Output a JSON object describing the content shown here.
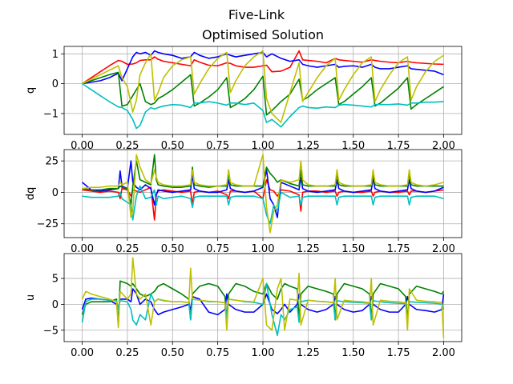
{
  "chart_data": [
    {
      "type": "line",
      "suptitle": "Five-Link",
      "title": "Optimised Solution",
      "ylabel": "q",
      "xlim": [
        -0.1,
        2.1
      ],
      "ylim": [
        -1.7,
        1.25
      ],
      "xticks": [
        "0.00",
        "0.25",
        "0.50",
        "0.75",
        "1.00",
        "1.25",
        "1.50",
        "1.75",
        "2.00"
      ],
      "yticks": [
        1,
        0,
        -1
      ],
      "yticklabels": [
        "1",
        "0",
        "−1"
      ],
      "grid": true,
      "x": [
        0,
        0.05,
        0.1,
        0.15,
        0.2,
        0.22,
        0.25,
        0.28,
        0.3,
        0.32,
        0.35,
        0.38,
        0.4,
        0.42,
        0.45,
        0.5,
        0.55,
        0.6,
        0.62,
        0.65,
        0.7,
        0.75,
        0.8,
        0.82,
        0.85,
        0.9,
        0.95,
        1.0,
        1.02,
        1.05,
        1.1,
        1.15,
        1.2,
        1.22,
        1.25,
        1.3,
        1.35,
        1.4,
        1.42,
        1.45,
        1.5,
        1.55,
        1.6,
        1.62,
        1.65,
        1.7,
        1.75,
        1.8,
        1.82,
        1.85,
        1.9,
        1.95,
        2.0
      ],
      "series": [
        {
          "color": "#ff0000",
          "values": [
            0,
            0.2,
            0.4,
            0.6,
            0.78,
            0.75,
            0.65,
            0.66,
            0.7,
            0.78,
            0.8,
            0.8,
            0.9,
            0.82,
            0.75,
            0.7,
            0.65,
            0.6,
            0.8,
            0.72,
            0.62,
            0.6,
            0.7,
            0.68,
            0.6,
            0.55,
            0.55,
            0.6,
            0.62,
            0.4,
            0.42,
            0.55,
            1.1,
            0.8,
            0.78,
            0.75,
            0.7,
            0.85,
            0.8,
            0.78,
            0.75,
            0.72,
            0.8,
            0.78,
            0.75,
            0.72,
            0.7,
            0.75,
            0.72,
            0.7,
            0.68,
            0.66,
            0.65
          ]
        },
        {
          "color": "#0000ff",
          "values": [
            0,
            0.05,
            0.1,
            0.2,
            0.35,
            0.1,
            0.5,
            0.9,
            1.05,
            1.0,
            1.05,
            0.95,
            1.1,
            1.05,
            1.0,
            0.95,
            0.85,
            0.9,
            1.05,
            0.95,
            0.85,
            0.9,
            1.0,
            0.95,
            0.9,
            0.95,
            1.0,
            1.05,
            0.9,
            1.0,
            0.85,
            0.75,
            0.8,
            0.65,
            0.6,
            0.55,
            0.6,
            0.65,
            0.55,
            0.58,
            0.6,
            0.55,
            0.65,
            0.55,
            0.5,
            0.5,
            0.55,
            0.6,
            0.5,
            0.48,
            0.45,
            0.42,
            0.3
          ]
        },
        {
          "color": "#008000",
          "values": [
            0,
            0.1,
            0.2,
            0.3,
            0.38,
            -0.75,
            -0.7,
            -0.4,
            -0.2,
            0.0,
            -0.6,
            -0.7,
            -0.65,
            -0.5,
            -0.4,
            -0.2,
            0.05,
            0.3,
            -0.75,
            -0.65,
            -0.45,
            -0.2,
            0.2,
            -0.8,
            -0.7,
            -0.5,
            -0.2,
            0.25,
            -1.05,
            -0.9,
            -0.6,
            -0.35,
            0.15,
            -0.55,
            -0.45,
            -0.2,
            0.0,
            0.2,
            -0.7,
            -0.6,
            -0.35,
            -0.1,
            0.2,
            -0.75,
            -0.65,
            -0.4,
            -0.15,
            0.2,
            -0.85,
            -0.7,
            -0.5,
            -0.3,
            -0.1
          ]
        },
        {
          "color": "#00bfbf",
          "values": [
            0,
            -0.2,
            -0.4,
            -0.6,
            -0.78,
            -0.8,
            -0.9,
            -1.2,
            -1.5,
            -1.4,
            -0.95,
            -0.8,
            -0.85,
            -0.8,
            -0.75,
            -0.7,
            -0.72,
            -0.8,
            -0.65,
            -0.65,
            -0.6,
            -0.65,
            -0.72,
            -0.65,
            -0.65,
            -0.7,
            -0.65,
            -0.9,
            -1.3,
            -1.2,
            -1.45,
            -1.1,
            -0.8,
            -0.75,
            -0.8,
            -0.82,
            -0.78,
            -0.8,
            -0.72,
            -0.7,
            -0.72,
            -0.75,
            -0.78,
            -0.7,
            -0.7,
            -0.7,
            -0.68,
            -0.72,
            -0.65,
            -0.65,
            -0.62,
            -0.62,
            -0.6
          ]
        },
        {
          "color": "#bfbf00",
          "values": [
            0,
            0.15,
            0.3,
            0.45,
            0.6,
            0.2,
            -0.1,
            -0.95,
            -0.55,
            0.3,
            0.7,
            1.0,
            -0.55,
            -0.3,
            0.2,
            0.6,
            0.8,
            0.9,
            -0.35,
            0.0,
            0.5,
            0.85,
            1.05,
            -0.3,
            0.1,
            0.6,
            0.9,
            1.1,
            -0.5,
            -1.0,
            -1.3,
            -0.3,
            0.7,
            -0.6,
            -0.3,
            0.2,
            0.6,
            0.85,
            -0.55,
            -0.2,
            0.3,
            0.7,
            0.9,
            -0.6,
            -0.2,
            0.3,
            0.7,
            0.9,
            -0.55,
            -0.1,
            0.4,
            0.75,
            0.95
          ]
        }
      ]
    },
    {
      "type": "line",
      "ylabel": "dq",
      "xlim": [
        -0.1,
        2.1
      ],
      "ylim": [
        -36,
        34
      ],
      "xticks": [
        "0.00",
        "0.25",
        "0.50",
        "0.75",
        "1.00",
        "1.25",
        "1.50",
        "1.75",
        "2.00"
      ],
      "yticks": [
        25,
        0,
        -25
      ],
      "yticklabels": [
        "25",
        "0",
        "−25"
      ],
      "grid": true,
      "x": [
        0,
        0.05,
        0.1,
        0.15,
        0.2,
        0.21,
        0.22,
        0.25,
        0.27,
        0.28,
        0.3,
        0.32,
        0.35,
        0.38,
        0.4,
        0.41,
        0.42,
        0.45,
        0.5,
        0.55,
        0.6,
        0.61,
        0.62,
        0.65,
        0.7,
        0.75,
        0.8,
        0.81,
        0.82,
        0.85,
        0.9,
        0.95,
        1.0,
        1.02,
        1.04,
        1.06,
        1.08,
        1.1,
        1.15,
        1.2,
        1.21,
        1.22,
        1.25,
        1.3,
        1.35,
        1.4,
        1.41,
        1.42,
        1.45,
        1.5,
        1.55,
        1.6,
        1.61,
        1.62,
        1.65,
        1.7,
        1.75,
        1.8,
        1.81,
        1.82,
        1.85,
        1.9,
        1.95,
        2.0
      ],
      "series": [
        {
          "color": "#ff0000",
          "values": [
            2,
            1,
            0,
            1,
            0,
            -5,
            3,
            2,
            -3,
            2,
            1,
            0,
            2,
            4,
            -22,
            -2,
            1,
            2,
            1,
            0,
            1,
            -10,
            0,
            1,
            0,
            1,
            -2,
            -5,
            1,
            1,
            0,
            1,
            -5,
            10,
            2,
            1,
            -3,
            2,
            1,
            -2,
            -15,
            0,
            1,
            1,
            0,
            1,
            -3,
            0,
            1,
            0,
            0,
            1,
            -3,
            0,
            1,
            0,
            0,
            1,
            -2,
            1,
            1,
            0,
            1,
            2
          ]
        },
        {
          "color": "#0000ff",
          "values": [
            8,
            2,
            1,
            2,
            3,
            17,
            5,
            3,
            25,
            8,
            4,
            2,
            6,
            3,
            -10,
            -2,
            2,
            1,
            0,
            1,
            2,
            14,
            3,
            1,
            0,
            0,
            2,
            10,
            3,
            1,
            0,
            1,
            4,
            18,
            -5,
            -10,
            -20,
            8,
            5,
            2,
            12,
            3,
            1,
            0,
            1,
            2,
            10,
            3,
            1,
            0,
            1,
            2,
            11,
            3,
            1,
            0,
            1,
            2,
            10,
            3,
            1,
            0,
            1,
            4
          ]
        },
        {
          "color": "#008000",
          "values": [
            3,
            2,
            2,
            3,
            3,
            5,
            4,
            3,
            -10,
            5,
            25,
            10,
            8,
            6,
            30,
            10,
            6,
            5,
            4,
            4,
            5,
            20,
            6,
            5,
            4,
            5,
            5,
            15,
            6,
            5,
            5,
            5,
            5,
            20,
            15,
            12,
            8,
            10,
            7,
            5,
            18,
            6,
            5,
            5,
            5,
            5,
            15,
            6,
            5,
            5,
            5,
            5,
            16,
            6,
            5,
            5,
            5,
            5,
            15,
            6,
            5,
            5,
            5,
            5
          ]
        },
        {
          "color": "#00bfbf",
          "values": [
            -3,
            -4,
            -4,
            -4,
            -3,
            0,
            -5,
            -8,
            -10,
            -22,
            -3,
            5,
            -5,
            -4,
            2,
            -10,
            -3,
            -5,
            -4,
            -3,
            -5,
            -12,
            -4,
            -3,
            -3,
            -3,
            -3,
            -10,
            -4,
            -3,
            -3,
            -3,
            -5,
            -18,
            -25,
            -10,
            -15,
            0,
            -4,
            -3,
            -10,
            -4,
            -3,
            -3,
            -3,
            -3,
            -10,
            -4,
            -3,
            -3,
            -3,
            -3,
            -10,
            -4,
            -3,
            -3,
            -3,
            -3,
            -10,
            -4,
            -3,
            -3,
            -3,
            -5
          ]
        },
        {
          "color": "#bfbf00",
          "values": [
            3,
            4,
            4,
            5,
            5,
            8,
            6,
            8,
            -20,
            -15,
            30,
            20,
            10,
            7,
            18,
            12,
            8,
            6,
            5,
            5,
            6,
            18,
            8,
            6,
            5,
            5,
            6,
            18,
            8,
            6,
            5,
            5,
            30,
            -12,
            -32,
            -15,
            -10,
            10,
            8,
            10,
            25,
            10,
            6,
            5,
            5,
            6,
            18,
            8,
            6,
            5,
            5,
            6,
            18,
            8,
            6,
            5,
            5,
            6,
            18,
            8,
            6,
            5,
            6,
            8
          ]
        }
      ]
    },
    {
      "type": "line",
      "ylabel": "u",
      "xlim": [
        -0.1,
        2.1
      ],
      "ylim": [
        -7.2,
        9.8
      ],
      "xticks": [
        "0.00",
        "0.25",
        "0.50",
        "0.75",
        "1.00",
        "1.25",
        "1.50",
        "1.75",
        "2.00"
      ],
      "yticks": [
        5,
        0,
        -5
      ],
      "yticklabels": [
        "5",
        "0",
        "−5"
      ],
      "grid": true,
      "x": [
        0,
        0.02,
        0.05,
        0.1,
        0.15,
        0.19,
        0.2,
        0.21,
        0.25,
        0.27,
        0.28,
        0.3,
        0.32,
        0.35,
        0.38,
        0.4,
        0.42,
        0.45,
        0.5,
        0.55,
        0.59,
        0.6,
        0.61,
        0.65,
        0.7,
        0.75,
        0.79,
        0.8,
        0.81,
        0.85,
        0.9,
        0.95,
        1.0,
        1.02,
        1.05,
        1.08,
        1.1,
        1.12,
        1.15,
        1.19,
        1.2,
        1.21,
        1.25,
        1.3,
        1.35,
        1.39,
        1.4,
        1.41,
        1.45,
        1.5,
        1.55,
        1.59,
        1.6,
        1.61,
        1.65,
        1.7,
        1.75,
        1.79,
        1.8,
        1.81,
        1.85,
        1.9,
        1.95,
        1.99,
        2.0
      ],
      "series": [
        {
          "color": "#0000ff",
          "values": [
            -1,
            1,
            1.2,
            1,
            0.8,
            0,
            -1,
            1,
            1,
            0.5,
            3,
            2,
            0,
            1,
            0.5,
            -1,
            -2,
            -1.5,
            -1,
            -0.5,
            0,
            -1,
            1.5,
            1,
            -1.5,
            -2,
            -1,
            2,
            0,
            -1,
            -1.5,
            -1.5,
            0,
            2,
            -1,
            -1.8,
            -1,
            0,
            -1.5,
            0,
            2,
            0,
            -1,
            -1.5,
            -1,
            0,
            1.5,
            0,
            -1,
            -1.5,
            -1.2,
            0,
            1.5,
            0,
            -1,
            -1.5,
            -1.5,
            0,
            1.5,
            0,
            -1,
            -1.2,
            -1.5,
            -1,
            2
          ]
        },
        {
          "color": "#008000",
          "values": [
            -2,
            0,
            0.5,
            0.5,
            0.5,
            1,
            -4,
            4.5,
            4,
            3.5,
            4,
            3,
            2,
            1.5,
            2,
            2.5,
            3.5,
            4,
            3,
            2,
            1,
            -3,
            2,
            3.5,
            4,
            3.5,
            1.5,
            -3,
            2,
            4,
            3.5,
            2.5,
            2,
            4,
            2,
            1,
            3,
            4,
            3.5,
            3,
            -3,
            2,
            3.5,
            3,
            2.5,
            2,
            -3,
            2,
            4,
            3.5,
            3,
            2,
            -3,
            2,
            4,
            3.5,
            3,
            1.5,
            -3,
            2,
            3.5,
            3,
            2.5,
            2,
            2.5
          ]
        },
        {
          "color": "#00bfbf",
          "values": [
            -3.5,
            0.5,
            1,
            1,
            0.8,
            0.7,
            -1,
            0.7,
            0.5,
            -1,
            -3,
            -4,
            -2,
            -3,
            2,
            0.5,
            1,
            0.7,
            0.5,
            0.5,
            0.3,
            -3,
            1,
            0.8,
            0.5,
            0.5,
            0.3,
            -3,
            1,
            0.8,
            0.5,
            0.4,
            0,
            4,
            -2,
            -6,
            -2,
            -3,
            -1,
            -0.5,
            -3.5,
            0.5,
            0.8,
            0.6,
            0.5,
            0.3,
            -3,
            0.7,
            0.5,
            0.4,
            0.3,
            0.2,
            -3,
            0.7,
            0.5,
            0.3,
            0.2,
            0.1,
            -3,
            0.5,
            0.4,
            0.3,
            0.2,
            0,
            -1
          ]
        },
        {
          "color": "#bfbf00",
          "values": [
            1,
            2.5,
            2,
            1.5,
            1,
            0.5,
            -4.5,
            2.5,
            1,
            2,
            9,
            2,
            1,
            2,
            -4,
            0.5,
            1,
            0.8,
            0.5,
            0.5,
            0.3,
            7,
            1,
            0.8,
            0.6,
            0.5,
            0.3,
            -5,
            1,
            0.8,
            0.6,
            0.5,
            5,
            -4,
            -5,
            3,
            5,
            -5,
            1,
            0.8,
            6,
            -4,
            0.8,
            0.6,
            0.5,
            0.3,
            5,
            -3,
            0.8,
            0.6,
            0.5,
            0.3,
            5,
            -4,
            0.8,
            0.6,
            0.5,
            0.3,
            -5,
            3,
            0.8,
            0.6,
            0.5,
            0.3,
            -6.5
          ]
        }
      ]
    }
  ]
}
